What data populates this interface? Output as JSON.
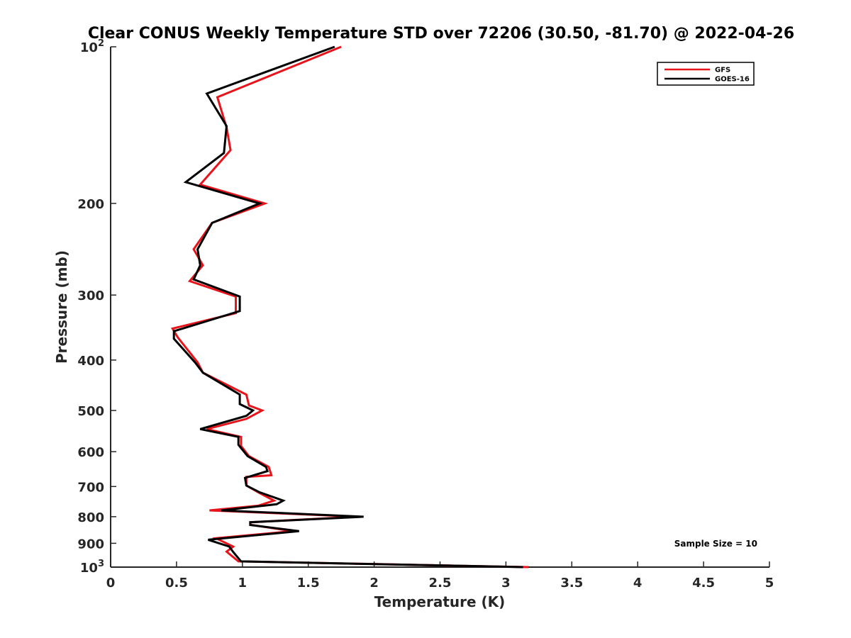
{
  "chart_data": {
    "type": "line",
    "title": "Clear CONUS Weekly Temperature STD over 72206 (30.50, -81.70) @ 2022-04-26",
    "xlabel": "Temperature (K)",
    "ylabel": "Pressure (mb)",
    "xlim": [
      0,
      5
    ],
    "ylim": [
      100,
      1000
    ],
    "yscale": "log",
    "y_reversed": true,
    "xticks": [
      0,
      0.5,
      1,
      1.5,
      2,
      2.5,
      3,
      3.5,
      4,
      4.5,
      5
    ],
    "xtick_labels": [
      "0",
      "0.5",
      "1",
      "1.5",
      "2",
      "2.5",
      "3",
      "3.5",
      "4",
      "4.5",
      "5"
    ],
    "yticks": [
      100,
      200,
      300,
      400,
      500,
      600,
      700,
      800,
      900,
      1000
    ],
    "ytick_labels": [
      {
        "base": "10",
        "exp": "2"
      },
      {
        "base": "200",
        "exp": ""
      },
      {
        "base": "300",
        "exp": ""
      },
      {
        "base": "400",
        "exp": ""
      },
      {
        "base": "500",
        "exp": ""
      },
      {
        "base": "600",
        "exp": ""
      },
      {
        "base": "700",
        "exp": ""
      },
      {
        "base": "800",
        "exp": ""
      },
      {
        "base": "900",
        "exp": ""
      },
      {
        "base": "10",
        "exp": "3"
      }
    ],
    "grid": false,
    "legend_position": "top-right",
    "series": [
      {
        "name": "GFS",
        "color": "#e8141b",
        "points": [
          [
            1.75,
            100
          ],
          [
            0.81,
            125
          ],
          [
            0.88,
            143
          ],
          [
            0.91,
            158
          ],
          [
            0.68,
            184
          ],
          [
            1.17,
            200
          ],
          [
            0.77,
            218
          ],
          [
            0.63,
            245
          ],
          [
            0.7,
            263
          ],
          [
            0.6,
            282
          ],
          [
            0.95,
            302
          ],
          [
            0.95,
            325
          ],
          [
            0.47,
            348
          ],
          [
            0.51,
            362
          ],
          [
            0.66,
            404
          ],
          [
            0.7,
            423
          ],
          [
            1.03,
            466
          ],
          [
            1.05,
            489
          ],
          [
            1.15,
            500
          ],
          [
            1.03,
            519
          ],
          [
            0.73,
            543
          ],
          [
            0.99,
            562
          ],
          [
            0.99,
            585
          ],
          [
            1.05,
            612
          ],
          [
            1.2,
            642
          ],
          [
            1.22,
            666
          ],
          [
            1.03,
            671
          ],
          [
            1.03,
            697
          ],
          [
            1.12,
            718
          ],
          [
            1.24,
            745
          ],
          [
            1.12,
            762
          ],
          [
            0.75,
            778
          ],
          [
            1.88,
            800
          ],
          [
            1.06,
            820
          ],
          [
            1.06,
            829
          ],
          [
            1.38,
            853
          ],
          [
            0.8,
            880
          ],
          [
            0.93,
            913
          ],
          [
            0.88,
            934
          ],
          [
            0.97,
            975
          ],
          [
            3.17,
            1000
          ]
        ]
      },
      {
        "name": "GOES-16",
        "color": "#000000",
        "points": [
          [
            1.7,
            100
          ],
          [
            0.73,
            123
          ],
          [
            0.88,
            142
          ],
          [
            0.86,
            160
          ],
          [
            0.57,
            182
          ],
          [
            1.13,
            200
          ],
          [
            0.77,
            218
          ],
          [
            0.66,
            245
          ],
          [
            0.68,
            263
          ],
          [
            0.63,
            280
          ],
          [
            0.98,
            302
          ],
          [
            0.98,
            322
          ],
          [
            0.48,
            352
          ],
          [
            0.48,
            364
          ],
          [
            0.64,
            404
          ],
          [
            0.7,
            423
          ],
          [
            0.98,
            466
          ],
          [
            0.98,
            486
          ],
          [
            1.08,
            500
          ],
          [
            1.03,
            512
          ],
          [
            0.68,
            543
          ],
          [
            0.97,
            562
          ],
          [
            0.97,
            582
          ],
          [
            1.04,
            612
          ],
          [
            1.18,
            642
          ],
          [
            1.19,
            654
          ],
          [
            1.02,
            674
          ],
          [
            1.03,
            697
          ],
          [
            1.13,
            718
          ],
          [
            1.31,
            745
          ],
          [
            1.26,
            757
          ],
          [
            0.84,
            778
          ],
          [
            1.92,
            800
          ],
          [
            1.06,
            820
          ],
          [
            1.06,
            830
          ],
          [
            1.43,
            853
          ],
          [
            0.74,
            886
          ],
          [
            0.9,
            913
          ],
          [
            0.93,
            935
          ],
          [
            0.99,
            975
          ],
          [
            3.13,
            1000
          ]
        ]
      }
    ],
    "annotations": [
      "Sample Size = 10"
    ]
  }
}
